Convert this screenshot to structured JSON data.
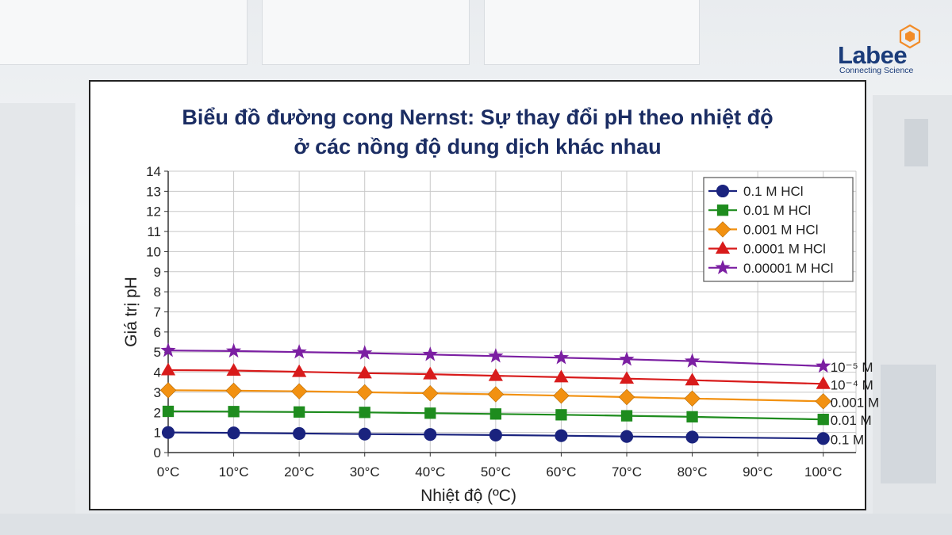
{
  "brand": {
    "name": "Labee",
    "tagline": "Connecting Science"
  },
  "chart_data": {
    "type": "line",
    "title_line1": "Biểu đồ đường cong Nernst: Sự thay đổi pH theo nhiệt độ",
    "title_line2": "ở các nồng độ dung dịch khác nhau",
    "xlabel": "Nhiệt độ (ºC)",
    "ylabel": "Giá trị pH",
    "x": [
      0,
      10,
      20,
      30,
      40,
      50,
      60,
      70,
      80,
      90,
      100
    ],
    "x_tick_labels": [
      "0°C",
      "10°C",
      "20°C",
      "30°C",
      "40°C",
      "50°C",
      "60°C",
      "70°C",
      "80°C",
      "90°C",
      "100°C"
    ],
    "y_ticks": [
      0,
      1,
      2,
      3,
      4,
      5,
      6,
      7,
      8,
      9,
      10,
      11,
      12,
      13,
      14
    ],
    "xlim": [
      0,
      105
    ],
    "ylim": [
      0,
      14
    ],
    "grid": true,
    "legend_position": "top-right",
    "series": [
      {
        "name": "0.1 M HCl",
        "end_label": "0.1 M",
        "color": "#1a237e",
        "marker": "circle",
        "x": [
          0,
          10,
          20,
          30,
          40,
          50,
          60,
          70,
          80,
          100
        ],
        "values": [
          1.0,
          0.98,
          0.95,
          0.92,
          0.9,
          0.87,
          0.84,
          0.8,
          0.77,
          0.7
        ]
      },
      {
        "name": "0.01 M HCl",
        "end_label": "0.01 M",
        "color": "#1e8c1e",
        "marker": "square",
        "x": [
          0,
          10,
          20,
          30,
          40,
          50,
          60,
          70,
          80,
          100
        ],
        "values": [
          2.05,
          2.04,
          2.02,
          2.0,
          1.96,
          1.92,
          1.88,
          1.83,
          1.78,
          1.65
        ]
      },
      {
        "name": "0.001 M HCl",
        "end_label": "0.001 M",
        "color": "#f29111",
        "marker": "diamond",
        "x": [
          0,
          10,
          20,
          30,
          40,
          50,
          60,
          70,
          80,
          100
        ],
        "values": [
          3.1,
          3.08,
          3.05,
          3.0,
          2.95,
          2.9,
          2.83,
          2.76,
          2.69,
          2.55
        ]
      },
      {
        "name": "0.0001 M HCl",
        "end_label": "10⁻⁴ M",
        "color": "#d81b1b",
        "marker": "triangle",
        "x": [
          0,
          10,
          20,
          30,
          40,
          50,
          60,
          70,
          80,
          100
        ],
        "values": [
          4.1,
          4.08,
          4.02,
          3.95,
          3.9,
          3.82,
          3.75,
          3.68,
          3.6,
          3.42
        ]
      },
      {
        "name": "0.00001 M HCl",
        "end_label": "10⁻⁵ M",
        "color": "#7b1fa2",
        "marker": "star",
        "x": [
          0,
          10,
          20,
          30,
          40,
          50,
          60,
          70,
          80,
          100
        ],
        "values": [
          5.08,
          5.05,
          5.0,
          4.95,
          4.88,
          4.8,
          4.72,
          4.64,
          4.55,
          4.3
        ]
      }
    ]
  }
}
